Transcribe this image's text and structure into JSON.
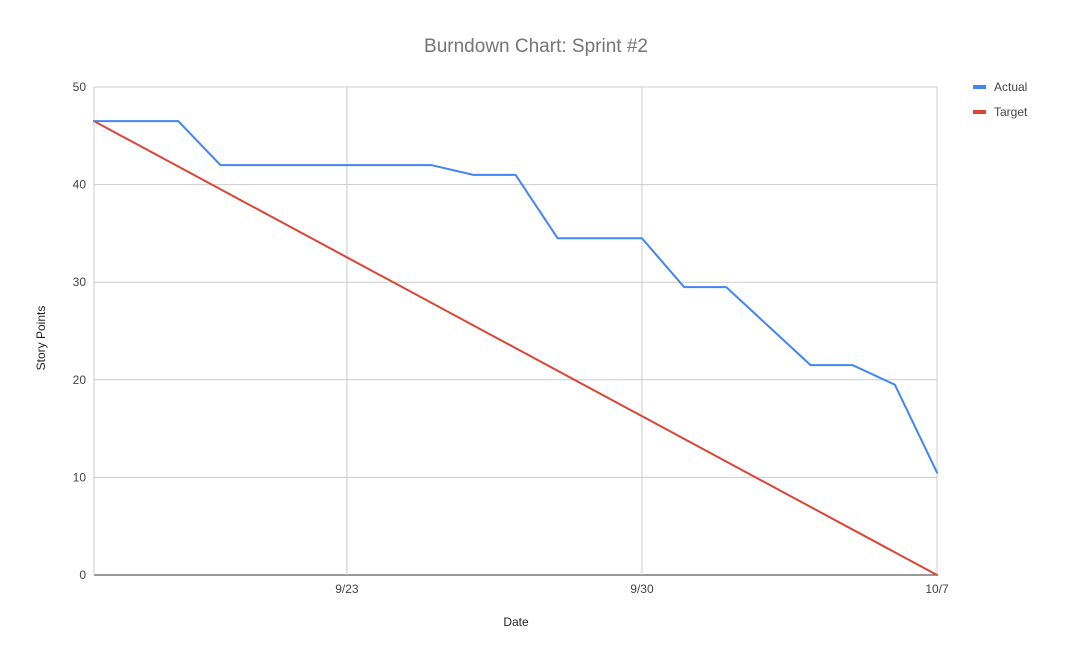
{
  "chart_data": {
    "type": "line",
    "title": "Burndown Chart: Sprint #2",
    "xlabel": "Date",
    "ylabel": "Story Points",
    "ylim": [
      0,
      50
    ],
    "yticks": [
      0,
      10,
      20,
      30,
      40,
      50
    ],
    "x_ticks": [
      {
        "day": 23,
        "label": "9/23"
      },
      {
        "day": 30,
        "label": "9/30"
      },
      {
        "day": 37,
        "label": "10/7"
      }
    ],
    "xlim_days": [
      17,
      37
    ],
    "grid": true,
    "legend_position": "right",
    "series": [
      {
        "name": "Actual",
        "color": "#4285f4",
        "points": [
          {
            "day": 17,
            "value": 46.5
          },
          {
            "day": 18,
            "value": 46.5
          },
          {
            "day": 19,
            "value": 46.5
          },
          {
            "day": 20,
            "value": 42
          },
          {
            "day": 21,
            "value": 42
          },
          {
            "day": 22,
            "value": 42
          },
          {
            "day": 23,
            "value": 42
          },
          {
            "day": 24,
            "value": 42
          },
          {
            "day": 25,
            "value": 42
          },
          {
            "day": 26,
            "value": 41
          },
          {
            "day": 27,
            "value": 41
          },
          {
            "day": 28,
            "value": 34.5
          },
          {
            "day": 29,
            "value": 34.5
          },
          {
            "day": 30,
            "value": 34.5
          },
          {
            "day": 31,
            "value": 29.5
          },
          {
            "day": 32,
            "value": 29.5
          },
          {
            "day": 33,
            "value": 25.5
          },
          {
            "day": 34,
            "value": 21.5
          },
          {
            "day": 35,
            "value": 21.5
          },
          {
            "day": 36,
            "value": 19.5
          },
          {
            "day": 37,
            "value": 10.5
          }
        ]
      },
      {
        "name": "Target",
        "color": "#db4437",
        "points": [
          {
            "day": 17,
            "value": 46.5
          },
          {
            "day": 37,
            "value": 0
          }
        ]
      }
    ]
  }
}
